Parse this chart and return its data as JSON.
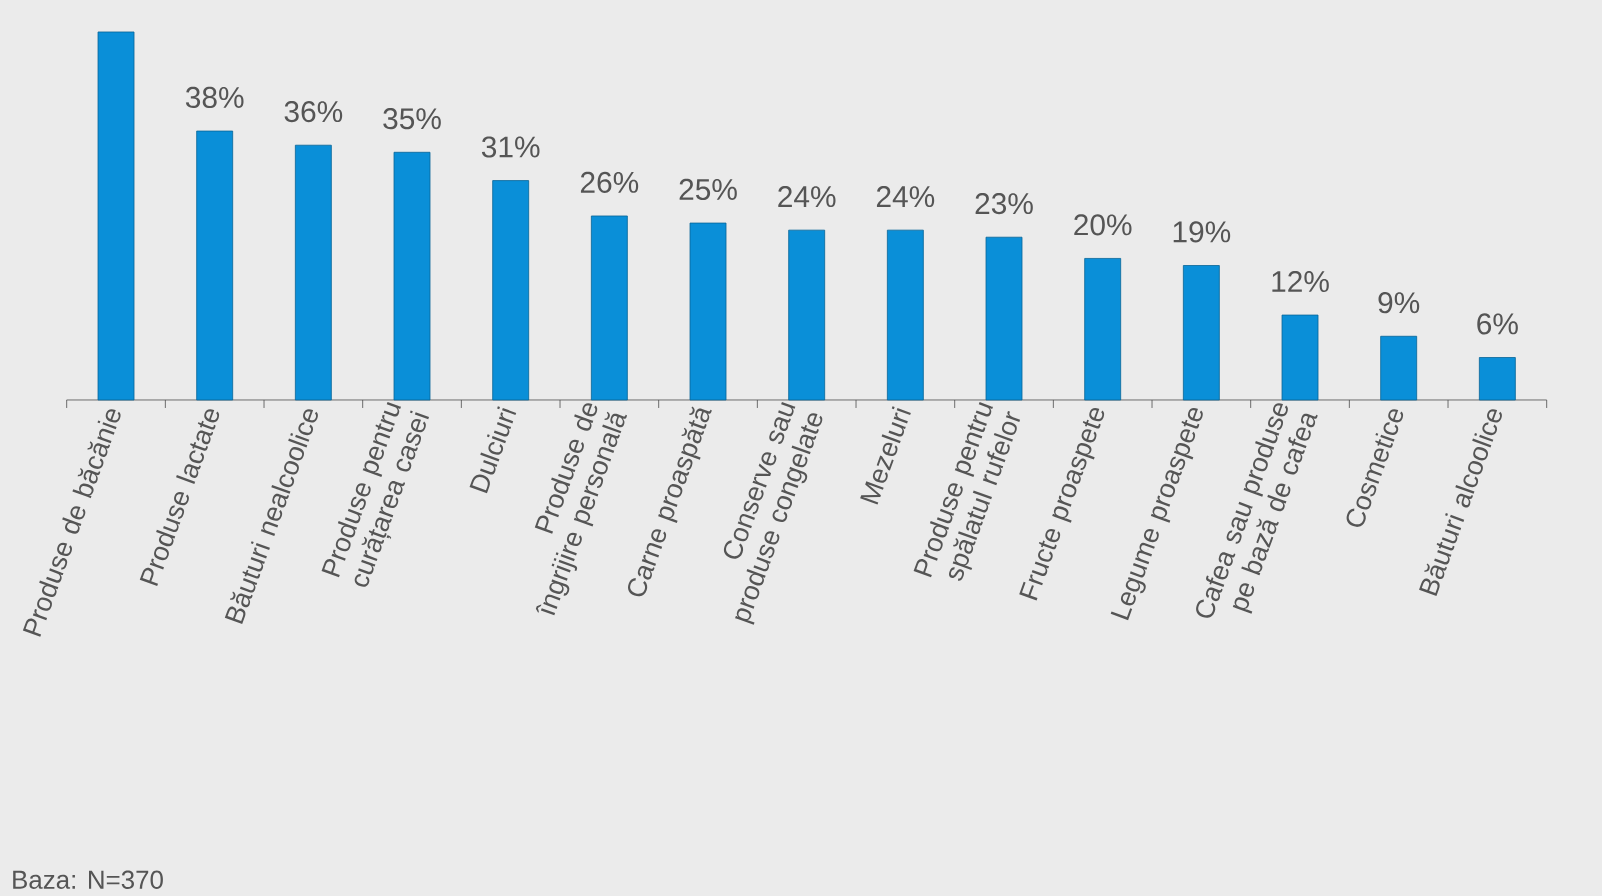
{
  "chart_data": {
    "type": "bar",
    "categories": [
      "Produse de băcănie",
      "Produse lactate",
      "Băuturi nealcoolice",
      "Produse pentru curățarea casei",
      "Dulciuri",
      "Produse de îngrijire personală",
      "Carne proaspătă",
      "Conserve sau produse congelate",
      "Mezeluri",
      "Produse pentru spălatul rufelor",
      "Fructe proaspete",
      "Legume proaspete",
      "Cafea sau produse pe bază de cafea",
      "Cosmetice",
      "Băuturi alcoolice"
    ],
    "values": [
      52,
      38,
      36,
      35,
      31,
      26,
      25,
      24,
      24,
      23,
      20,
      19,
      12,
      9,
      6
    ],
    "value_labels": [
      null,
      "38%",
      "36%",
      "35%",
      "31%",
      "26%",
      "25%",
      "24%",
      "24%",
      "23%",
      "20%",
      "19%",
      "12%",
      "9%",
      "6%"
    ],
    "color": "#0a8fd8",
    "annotations": [
      "Baza: N=370"
    ]
  }
}
